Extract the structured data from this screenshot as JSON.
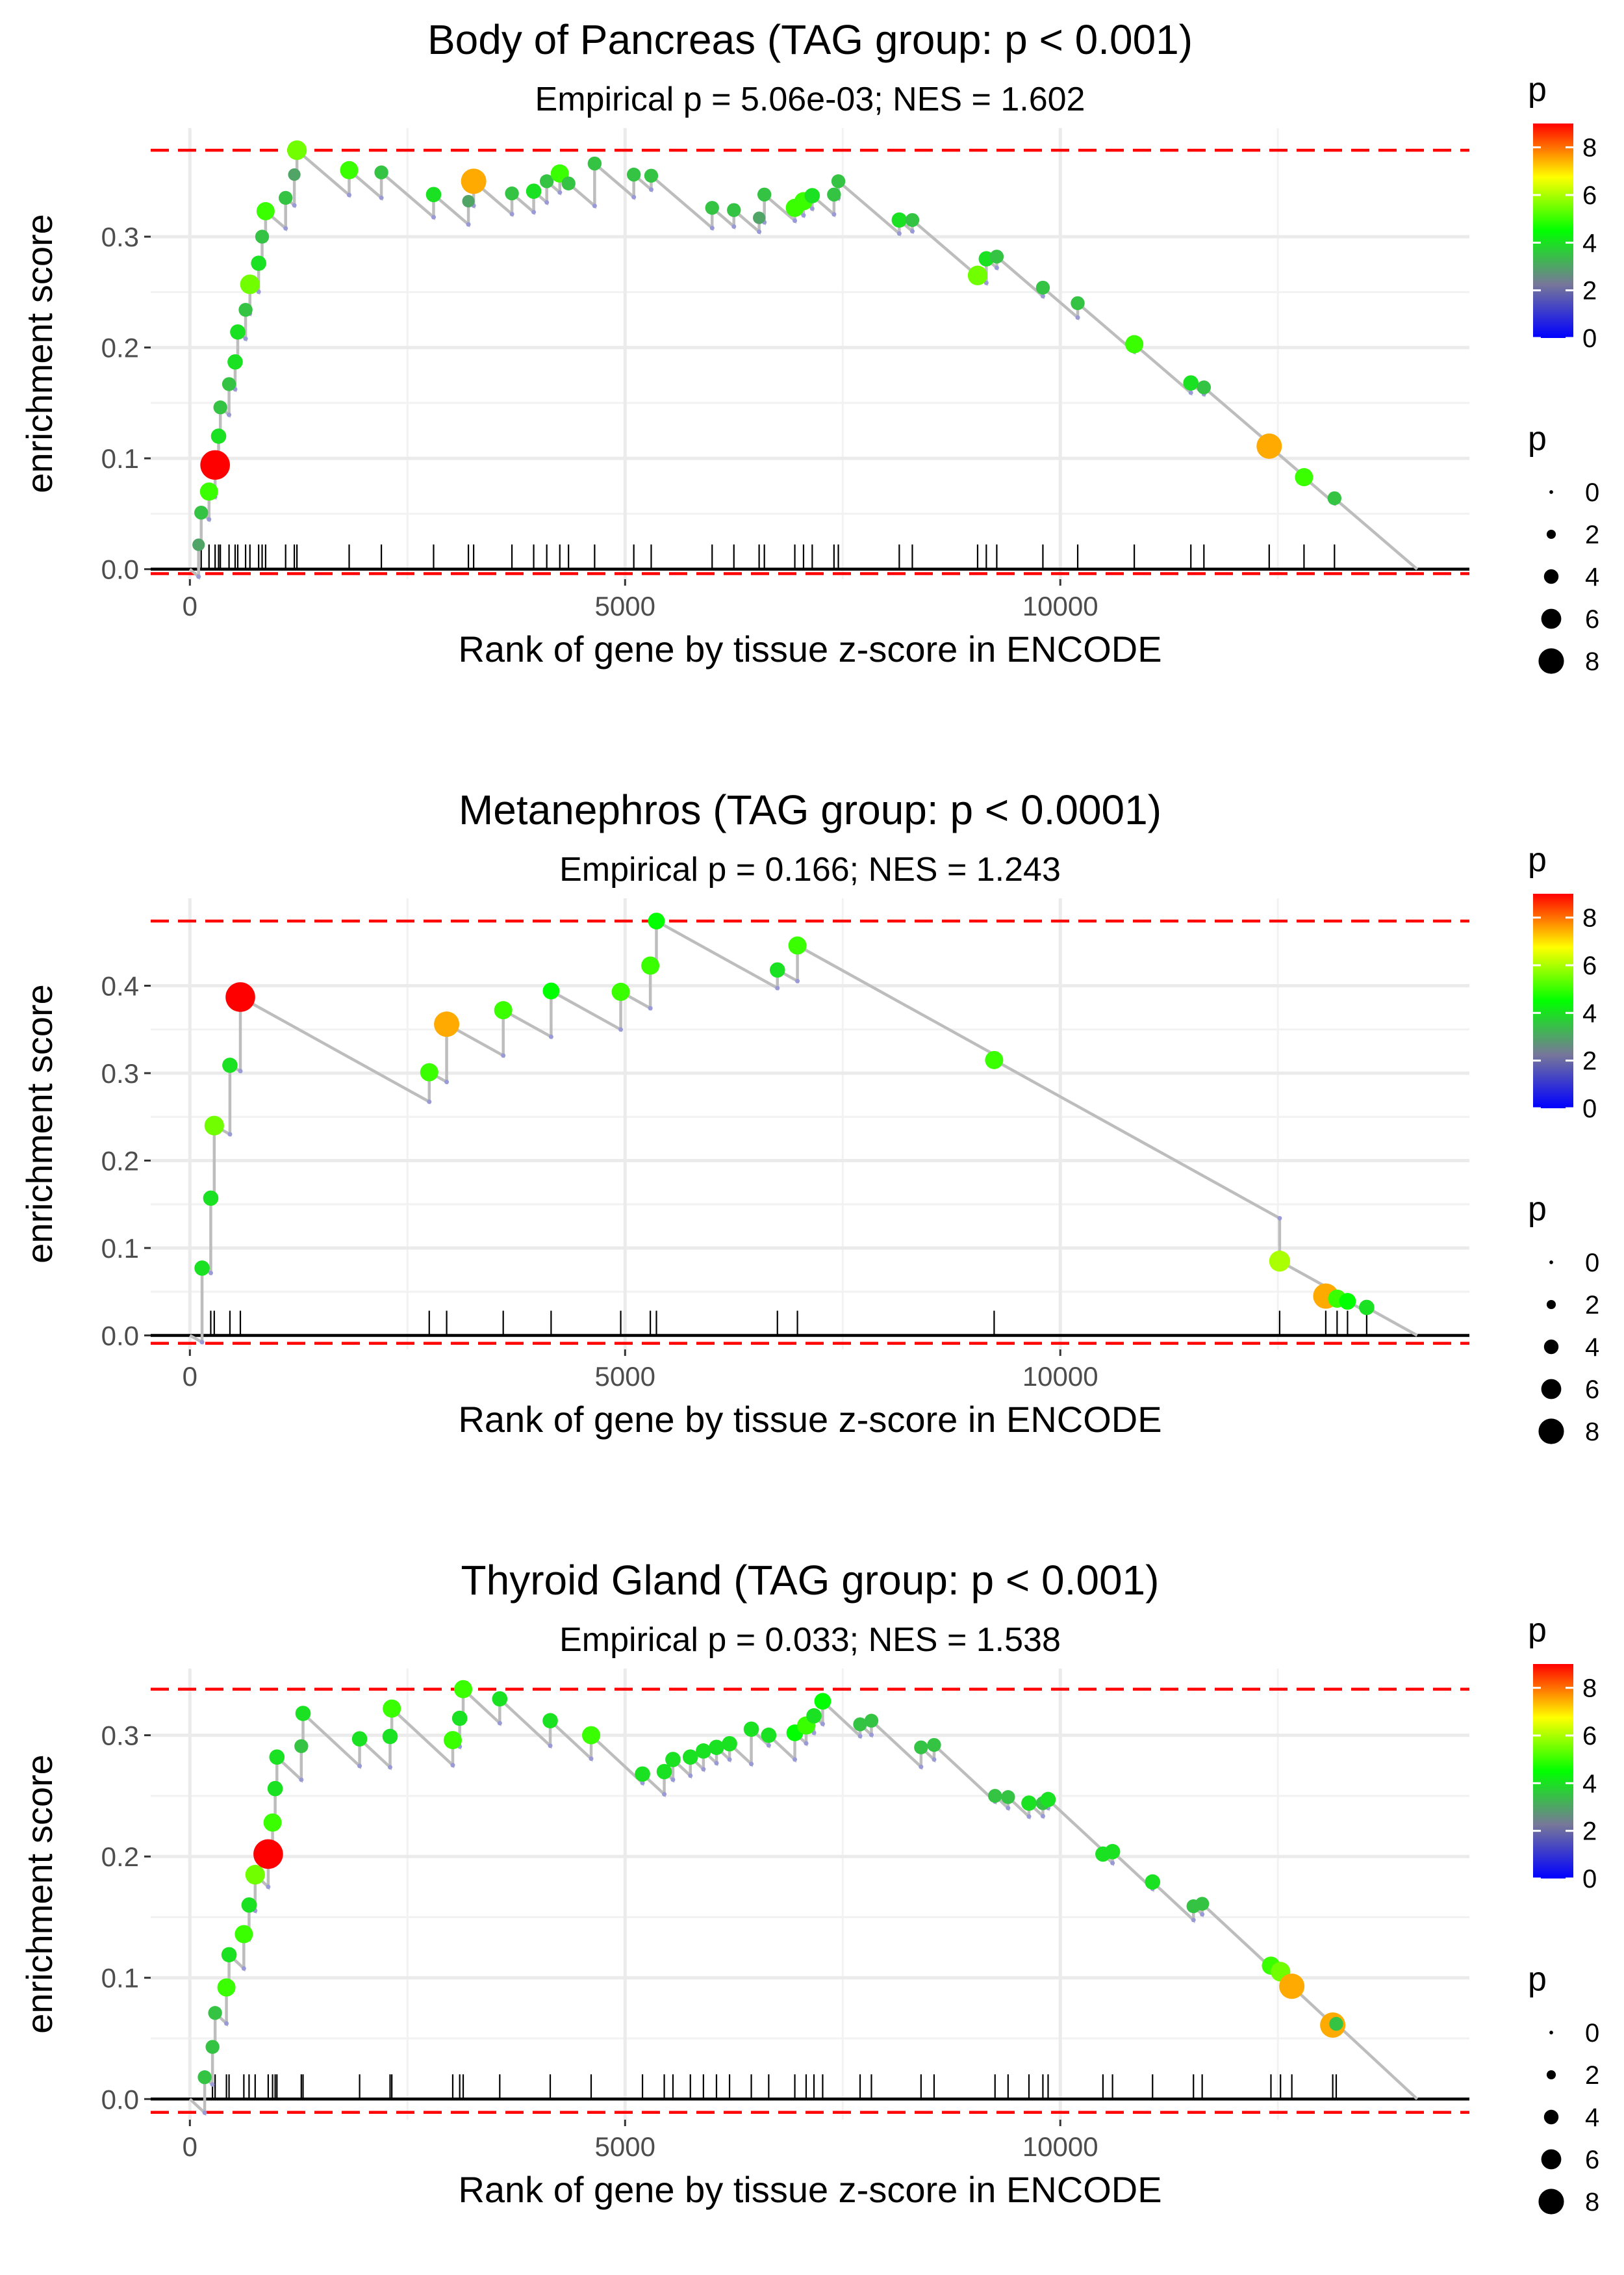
{
  "chart_data": [
    {
      "type": "line",
      "title": "Body of Pancreas (TAG group: p < 0.001)",
      "subtitle": "Empirical p = 5.06e-03; NES = 1.602",
      "xlabel": "Rank of gene by tissue z-score in ENCODE",
      "ylabel": "enrichment score",
      "xlim": [
        -450,
        14700
      ],
      "ylim": [
        -0.009,
        0.398
      ],
      "x_ticks": [
        0,
        5000,
        10000
      ],
      "x_tick_labels": [
        "0",
        "5000",
        "10000"
      ],
      "y_ticks": [
        0.0,
        0.1,
        0.2,
        0.3
      ],
      "y_tick_labels": [
        "0.0",
        "0.1",
        "0.2",
        "0.3"
      ],
      "max_es_line": 0.378,
      "min_es_line": -0.004,
      "n_genes": 14100,
      "hits": [
        {
          "x": 100,
          "es": 0.022,
          "p": 3.0
        },
        {
          "x": 130,
          "es": 0.051,
          "p": 3.5
        },
        {
          "x": 220,
          "es": 0.07,
          "p": 5.0
        },
        {
          "x": 290,
          "es": 0.094,
          "p": 9.0
        },
        {
          "x": 330,
          "es": 0.12,
          "p": 4.0
        },
        {
          "x": 350,
          "es": 0.146,
          "p": 3.5
        },
        {
          "x": 450,
          "es": 0.167,
          "p": 3.5
        },
        {
          "x": 520,
          "es": 0.187,
          "p": 4.0
        },
        {
          "x": 550,
          "es": 0.214,
          "p": 4.0
        },
        {
          "x": 640,
          "es": 0.234,
          "p": 3.5
        },
        {
          "x": 690,
          "es": 0.257,
          "p": 5.5
        },
        {
          "x": 790,
          "es": 0.276,
          "p": 4.0
        },
        {
          "x": 830,
          "es": 0.3,
          "p": 3.5
        },
        {
          "x": 870,
          "es": 0.323,
          "p": 5.0
        },
        {
          "x": 1100,
          "es": 0.335,
          "p": 3.5
        },
        {
          "x": 1200,
          "es": 0.356,
          "p": 3.0
        },
        {
          "x": 1230,
          "es": 0.378,
          "p": 5.5
        },
        {
          "x": 1830,
          "es": 0.36,
          "p": 5.0
        },
        {
          "x": 2200,
          "es": 0.358,
          "p": 3.5
        },
        {
          "x": 2800,
          "es": 0.338,
          "p": 4.0
        },
        {
          "x": 3200,
          "es": 0.332,
          "p": 3.0
        },
        {
          "x": 3260,
          "es": 0.35,
          "p": 7.5
        },
        {
          "x": 3700,
          "es": 0.339,
          "p": 3.5
        },
        {
          "x": 3950,
          "es": 0.341,
          "p": 4.0
        },
        {
          "x": 4100,
          "es": 0.35,
          "p": 3.5
        },
        {
          "x": 4250,
          "es": 0.357,
          "p": 5.0
        },
        {
          "x": 4350,
          "es": 0.348,
          "p": 3.5
        },
        {
          "x": 4650,
          "es": 0.366,
          "p": 3.5
        },
        {
          "x": 5100,
          "es": 0.356,
          "p": 3.5
        },
        {
          "x": 5300,
          "es": 0.355,
          "p": 3.5
        },
        {
          "x": 6000,
          "es": 0.326,
          "p": 3.5
        },
        {
          "x": 6250,
          "es": 0.324,
          "p": 3.5
        },
        {
          "x": 6540,
          "es": 0.317,
          "p": 3.0
        },
        {
          "x": 6600,
          "es": 0.338,
          "p": 3.5
        },
        {
          "x": 6950,
          "es": 0.326,
          "p": 5.0
        },
        {
          "x": 7050,
          "es": 0.332,
          "p": 5.0
        },
        {
          "x": 7150,
          "es": 0.337,
          "p": 4.0
        },
        {
          "x": 7400,
          "es": 0.338,
          "p": 3.5
        },
        {
          "x": 7450,
          "es": 0.35,
          "p": 3.5
        },
        {
          "x": 8150,
          "es": 0.315,
          "p": 4.0
        },
        {
          "x": 8300,
          "es": 0.315,
          "p": 3.5
        },
        {
          "x": 9050,
          "es": 0.265,
          "p": 5.5
        },
        {
          "x": 9150,
          "es": 0.28,
          "p": 4.0
        },
        {
          "x": 9270,
          "es": 0.282,
          "p": 3.5
        },
        {
          "x": 9800,
          "es": 0.254,
          "p": 3.5
        },
        {
          "x": 10200,
          "es": 0.24,
          "p": 3.5
        },
        {
          "x": 10850,
          "es": 0.203,
          "p": 5.0
        },
        {
          "x": 11500,
          "es": 0.168,
          "p": 4.0
        },
        {
          "x": 11650,
          "es": 0.164,
          "p": 3.5
        },
        {
          "x": 12400,
          "es": 0.111,
          "p": 7.5
        },
        {
          "x": 12800,
          "es": 0.083,
          "p": 5.0
        },
        {
          "x": 13150,
          "es": 0.064,
          "p": 3.5
        }
      ],
      "colorbar": {
        "title": "p",
        "min": 0,
        "max": 9,
        "ticks": [
          0,
          2,
          4,
          6,
          8
        ],
        "tick_labels": [
          "0",
          "2",
          "4",
          "6",
          "8"
        ],
        "colors": [
          "#0000ff",
          "#777799",
          "#00ff00",
          "#ffff00",
          "#ff0000"
        ]
      },
      "size_legend": {
        "title": "p",
        "values": [
          0,
          2,
          4,
          6,
          8
        ],
        "labels": [
          "0",
          "2",
          "4",
          "6",
          "8"
        ]
      }
    },
    {
      "type": "line",
      "title": "Metanephros (TAG group: p < 0.0001)",
      "subtitle": "Empirical p = 0.166; NES = 1.243",
      "xlabel": "Rank of gene by tissue z-score in ENCODE",
      "ylabel": "enrichment score",
      "xlim": [
        -450,
        14700
      ],
      "ylim": [
        -0.016,
        0.5
      ],
      "x_ticks": [
        0,
        5000,
        10000
      ],
      "x_tick_labels": [
        "0",
        "5000",
        "10000"
      ],
      "y_ticks": [
        0.0,
        0.1,
        0.2,
        0.3,
        0.4
      ],
      "y_tick_labels": [
        "0.0",
        "0.1",
        "0.2",
        "0.3",
        "0.4"
      ],
      "max_es_line": 0.474,
      "min_es_line": -0.009,
      "n_genes": 14100,
      "hits": [
        {
          "x": 140,
          "es": 0.077,
          "p": 4.0
        },
        {
          "x": 240,
          "es": 0.157,
          "p": 4.0
        },
        {
          "x": 280,
          "es": 0.24,
          "p": 5.5
        },
        {
          "x": 460,
          "es": 0.309,
          "p": 4.0
        },
        {
          "x": 580,
          "es": 0.387,
          "p": 9.0
        },
        {
          "x": 2750,
          "es": 0.301,
          "p": 5.0
        },
        {
          "x": 2950,
          "es": 0.356,
          "p": 7.5
        },
        {
          "x": 3600,
          "es": 0.372,
          "p": 5.0
        },
        {
          "x": 4150,
          "es": 0.394,
          "p": 4.5
        },
        {
          "x": 4950,
          "es": 0.393,
          "p": 5.0
        },
        {
          "x": 5290,
          "es": 0.423,
          "p": 5.0
        },
        {
          "x": 5360,
          "es": 0.474,
          "p": 4.5
        },
        {
          "x": 6750,
          "es": 0.418,
          "p": 4.0
        },
        {
          "x": 6980,
          "es": 0.446,
          "p": 5.0
        },
        {
          "x": 9240,
          "es": 0.315,
          "p": 5.0
        },
        {
          "x": 12520,
          "es": 0.085,
          "p": 6.0
        },
        {
          "x": 13050,
          "es": 0.045,
          "p": 7.5
        },
        {
          "x": 13180,
          "es": 0.042,
          "p": 5.0
        },
        {
          "x": 13300,
          "es": 0.039,
          "p": 4.5
        },
        {
          "x": 13520,
          "es": 0.032,
          "p": 4.0
        }
      ],
      "colorbar": {
        "title": "p",
        "min": 0,
        "max": 9,
        "ticks": [
          0,
          2,
          4,
          6,
          8
        ],
        "tick_labels": [
          "0",
          "2",
          "4",
          "6",
          "8"
        ],
        "colors": [
          "#0000ff",
          "#777799",
          "#00ff00",
          "#ffff00",
          "#ff0000"
        ]
      },
      "size_legend": {
        "title": "p",
        "values": [
          0,
          2,
          4,
          6,
          8
        ],
        "labels": [
          "0",
          "2",
          "4",
          "6",
          "8"
        ]
      }
    },
    {
      "type": "line",
      "title": "Thyroid Gland (TAG group: p < 0.001)",
      "subtitle": "Empirical p = 0.033; NES = 1.538",
      "xlabel": "Rank of gene by tissue z-score in ENCODE",
      "ylabel": "enrichment score",
      "xlim": [
        -450,
        14700
      ],
      "ylim": [
        -0.017,
        0.355
      ],
      "x_ticks": [
        0,
        5000,
        10000
      ],
      "x_tick_labels": [
        "0",
        "5000",
        "10000"
      ],
      "y_ticks": [
        0.0,
        0.1,
        0.2,
        0.3
      ],
      "y_tick_labels": [
        "0.0",
        "0.1",
        "0.2",
        "0.3"
      ],
      "max_es_line": 0.338,
      "min_es_line": -0.011,
      "n_genes": 14100,
      "hits": [
        {
          "x": 170,
          "es": 0.018,
          "p": 3.5
        },
        {
          "x": 260,
          "es": 0.043,
          "p": 3.5
        },
        {
          "x": 290,
          "es": 0.071,
          "p": 3.5
        },
        {
          "x": 420,
          "es": 0.092,
          "p": 5.0
        },
        {
          "x": 450,
          "es": 0.119,
          "p": 4.0
        },
        {
          "x": 620,
          "es": 0.136,
          "p": 5.0
        },
        {
          "x": 680,
          "es": 0.16,
          "p": 4.0
        },
        {
          "x": 750,
          "es": 0.185,
          "p": 5.5
        },
        {
          "x": 900,
          "es": 0.202,
          "p": 9.0
        },
        {
          "x": 950,
          "es": 0.228,
          "p": 5.0
        },
        {
          "x": 980,
          "es": 0.256,
          "p": 4.0
        },
        {
          "x": 1000,
          "es": 0.282,
          "p": 4.0
        },
        {
          "x": 1280,
          "es": 0.291,
          "p": 3.5
        },
        {
          "x": 1300,
          "es": 0.318,
          "p": 4.0
        },
        {
          "x": 1950,
          "es": 0.297,
          "p": 4.0
        },
        {
          "x": 2300,
          "es": 0.299,
          "p": 4.0
        },
        {
          "x": 2320,
          "es": 0.322,
          "p": 5.0
        },
        {
          "x": 3020,
          "es": 0.296,
          "p": 5.0
        },
        {
          "x": 3100,
          "es": 0.314,
          "p": 4.0
        },
        {
          "x": 3140,
          "es": 0.338,
          "p": 5.0
        },
        {
          "x": 3560,
          "es": 0.33,
          "p": 4.0
        },
        {
          "x": 4140,
          "es": 0.312,
          "p": 4.0
        },
        {
          "x": 4610,
          "es": 0.3,
          "p": 5.0
        },
        {
          "x": 5200,
          "es": 0.268,
          "p": 4.0
        },
        {
          "x": 5450,
          "es": 0.27,
          "p": 4.0
        },
        {
          "x": 5550,
          "es": 0.28,
          "p": 4.0
        },
        {
          "x": 5750,
          "es": 0.282,
          "p": 4.0
        },
        {
          "x": 5900,
          "es": 0.287,
          "p": 4.0
        },
        {
          "x": 6050,
          "es": 0.29,
          "p": 4.0
        },
        {
          "x": 6200,
          "es": 0.293,
          "p": 4.0
        },
        {
          "x": 6450,
          "es": 0.305,
          "p": 4.0
        },
        {
          "x": 6650,
          "es": 0.3,
          "p": 4.0
        },
        {
          "x": 6950,
          "es": 0.302,
          "p": 4.5
        },
        {
          "x": 7080,
          "es": 0.308,
          "p": 5.0
        },
        {
          "x": 7170,
          "es": 0.316,
          "p": 4.0
        },
        {
          "x": 7270,
          "es": 0.328,
          "p": 4.5
        },
        {
          "x": 7700,
          "es": 0.309,
          "p": 3.5
        },
        {
          "x": 7830,
          "es": 0.312,
          "p": 3.5
        },
        {
          "x": 8400,
          "es": 0.29,
          "p": 3.5
        },
        {
          "x": 8550,
          "es": 0.292,
          "p": 3.5
        },
        {
          "x": 9250,
          "es": 0.25,
          "p": 3.5
        },
        {
          "x": 9400,
          "es": 0.249,
          "p": 3.5
        },
        {
          "x": 9640,
          "es": 0.244,
          "p": 4.0
        },
        {
          "x": 9800,
          "es": 0.244,
          "p": 3.5
        },
        {
          "x": 9860,
          "es": 0.247,
          "p": 4.0
        },
        {
          "x": 10490,
          "es": 0.202,
          "p": 4.0
        },
        {
          "x": 10600,
          "es": 0.204,
          "p": 4.0
        },
        {
          "x": 11060,
          "es": 0.179,
          "p": 4.0
        },
        {
          "x": 11530,
          "es": 0.159,
          "p": 3.5
        },
        {
          "x": 11630,
          "es": 0.161,
          "p": 3.5
        },
        {
          "x": 12420,
          "es": 0.11,
          "p": 5.0
        },
        {
          "x": 12530,
          "es": 0.105,
          "p": 5.5
        },
        {
          "x": 12660,
          "es": 0.093,
          "p": 7.5
        },
        {
          "x": 13130,
          "es": 0.061,
          "p": 7.5
        },
        {
          "x": 13170,
          "es": 0.062,
          "p": 3.5
        }
      ],
      "colorbar": {
        "title": "p",
        "min": 0,
        "max": 9,
        "ticks": [
          0,
          2,
          4,
          6,
          8
        ],
        "tick_labels": [
          "0",
          "2",
          "4",
          "6",
          "8"
        ],
        "colors": [
          "#0000ff",
          "#777799",
          "#00ff00",
          "#ffff00",
          "#ff0000"
        ]
      },
      "size_legend": {
        "title": "p",
        "values": [
          0,
          2,
          4,
          6,
          8
        ],
        "labels": [
          "0",
          "2",
          "4",
          "6",
          "8"
        ]
      }
    }
  ]
}
